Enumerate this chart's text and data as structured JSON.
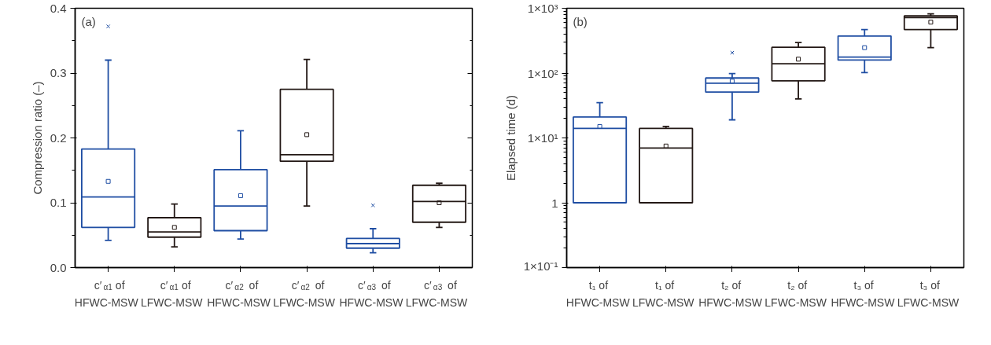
{
  "chart_data": [
    {
      "type": "box",
      "ylabel": "Compression ratio (–)",
      "annotations": [
        "(a)"
      ],
      "categories": [
        "c′$_{α1}$ of\nHFWC-MSW",
        "c′$_{α1}$ of\nLFWC-MSW",
        "c′$_{α2}$ of\nHFWC-MSW",
        "c′$_{α2}$ of\nLFWC-MSW",
        "c′$_{α3}$ of\nHFWC-MSW",
        "c′$_{α3}$ of\nLFWC-MSW"
      ],
      "colors": [
        "#1f4ea3",
        "#231815",
        "#1f4ea3",
        "#231815",
        "#1f4ea3",
        "#231815"
      ],
      "boxes": [
        {
          "low": 0.042,
          "q1": 0.062,
          "median": 0.109,
          "q3": 0.183,
          "high": 0.32,
          "mean": 0.133,
          "outliers": [
            0.372
          ]
        },
        {
          "low": 0.032,
          "q1": 0.047,
          "median": 0.055,
          "q3": 0.077,
          "high": 0.098,
          "mean": 0.062
        },
        {
          "low": 0.044,
          "q1": 0.057,
          "median": 0.095,
          "q3": 0.151,
          "high": 0.211,
          "mean": 0.111
        },
        {
          "low": 0.095,
          "q1": 0.164,
          "median": 0.174,
          "q3": 0.275,
          "high": 0.321,
          "mean": 0.205
        },
        {
          "low": 0.023,
          "q1": 0.03,
          "median": 0.037,
          "q3": 0.045,
          "high": 0.06,
          "outliers": [
            0.096
          ]
        },
        {
          "low": 0.062,
          "q1": 0.07,
          "median": 0.102,
          "q3": 0.127,
          "high": 0.13,
          "mean": 0.1
        }
      ],
      "ylim": [
        0,
        0.4
      ],
      "yticks": [
        {
          "value": 0,
          "label": "0.0"
        },
        0.1,
        0.2,
        0.3,
        0.4
      ],
      "grid": false
    },
    {
      "type": "box",
      "ylabel": "Elapsed time (d)",
      "annotations": [
        "(b)"
      ],
      "log": true,
      "categories": [
        "t₁ of\nHFWC-MSW",
        "t₁ of\nLFWC-MSW",
        "t₂ of\nHFWC-MSW",
        "t₂ of\nLFWC-MSW",
        "t₃ of\nHFWC-MSW",
        "t₃ of\nLFWC-MSW"
      ],
      "colors": [
        "#1f4ea3",
        "#231815",
        "#1f4ea3",
        "#231815",
        "#1f4ea3",
        "#231815"
      ],
      "boxes": [
        {
          "low": 1,
          "q1": 1,
          "median": 14,
          "q3": 21,
          "high": 35,
          "mean": 15
        },
        {
          "low": 1,
          "q1": 1,
          "median": 7,
          "q3": 14,
          "high": 15,
          "mean": 7.5
        },
        {
          "low": 19,
          "q1": 51,
          "median": 70,
          "q3": 84,
          "high": 98,
          "mean": 75,
          "outliers": [
            206
          ]
        },
        {
          "low": 40,
          "q1": 76,
          "median": 139,
          "q3": 250,
          "high": 296,
          "mean": 164
        },
        {
          "low": 102,
          "q1": 159,
          "median": 177,
          "q3": 373,
          "high": 470,
          "mean": 247
        },
        {
          "low": 247,
          "q1": 470,
          "median": 718,
          "q3": 762,
          "high": 818,
          "mean": 611
        }
      ],
      "ylim": [
        0.1,
        1000
      ],
      "yticks": [
        {
          "value": 0.1,
          "label": "1×10⁻¹"
        },
        1,
        {
          "value": 10,
          "label": "1×10¹"
        },
        {
          "value": 100,
          "label": "1×10²"
        },
        {
          "value": 1000,
          "label": "1×10³"
        }
      ],
      "grid": false
    }
  ]
}
